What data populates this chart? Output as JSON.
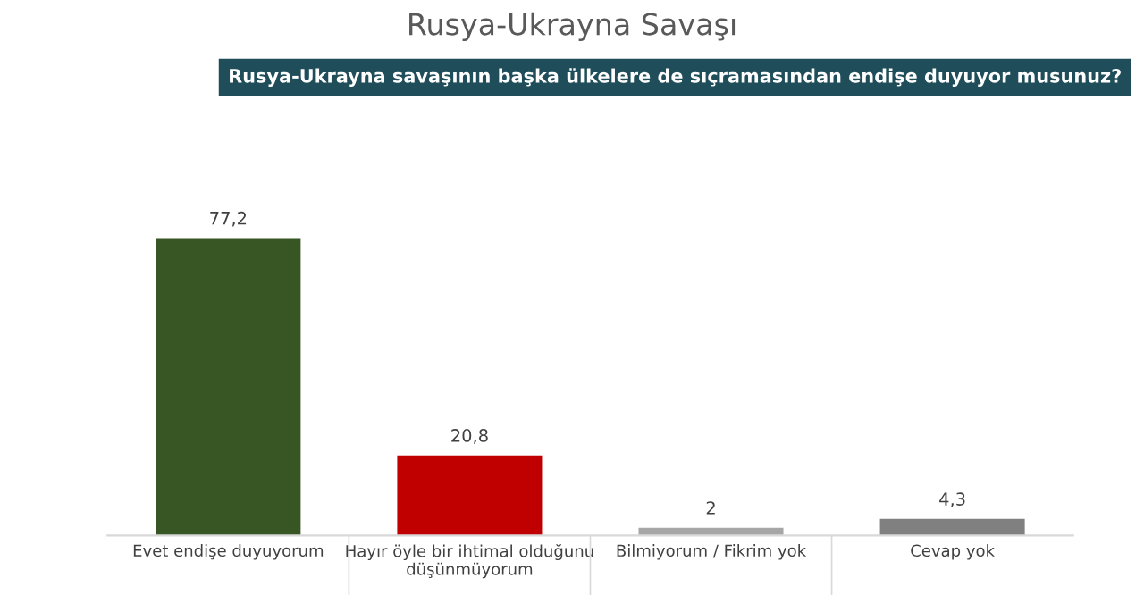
{
  "chart_data": {
    "type": "bar",
    "title": "Rusya-Ukrayna Savaşı",
    "subtitle": "Rusya-Ukrayna savaşının başka ülkelere de sıçramasından endişe duyuyor musunuz?",
    "categories": [
      "Evet endişe duyuyorum",
      "Hayır öyle bir ihtimal olduğunu\ndüşünmüyorum",
      "Bilmiyorum / Fikrim yok",
      "Cevap yok"
    ],
    "values": [
      77.2,
      20.8,
      2,
      4.3
    ],
    "colors": [
      "#375623",
      "#c00000",
      "#a6a6a6",
      "#808080"
    ],
    "value_labels": [
      "77,2",
      "20,8",
      "2",
      "4,3"
    ],
    "grid": false,
    "legend": false
  }
}
